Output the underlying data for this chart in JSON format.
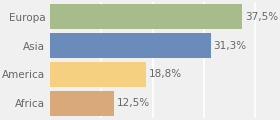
{
  "categories": [
    "Europa",
    "Asia",
    "America",
    "Africa"
  ],
  "values": [
    37.5,
    31.3,
    18.8,
    12.5
  ],
  "labels": [
    "37,5%",
    "31,3%",
    "18,8%",
    "12,5%"
  ],
  "bar_colors": [
    "#a8bb8a",
    "#6b8cba",
    "#f5d080",
    "#d9a97a"
  ],
  "background_color": "#f0f0f0",
  "xlim": [
    0,
    42
  ],
  "bar_height": 0.85,
  "label_fontsize": 7.5,
  "category_fontsize": 7.5,
  "grid_color": "#ffffff",
  "grid_linewidth": 1.2,
  "text_color": "#666666"
}
